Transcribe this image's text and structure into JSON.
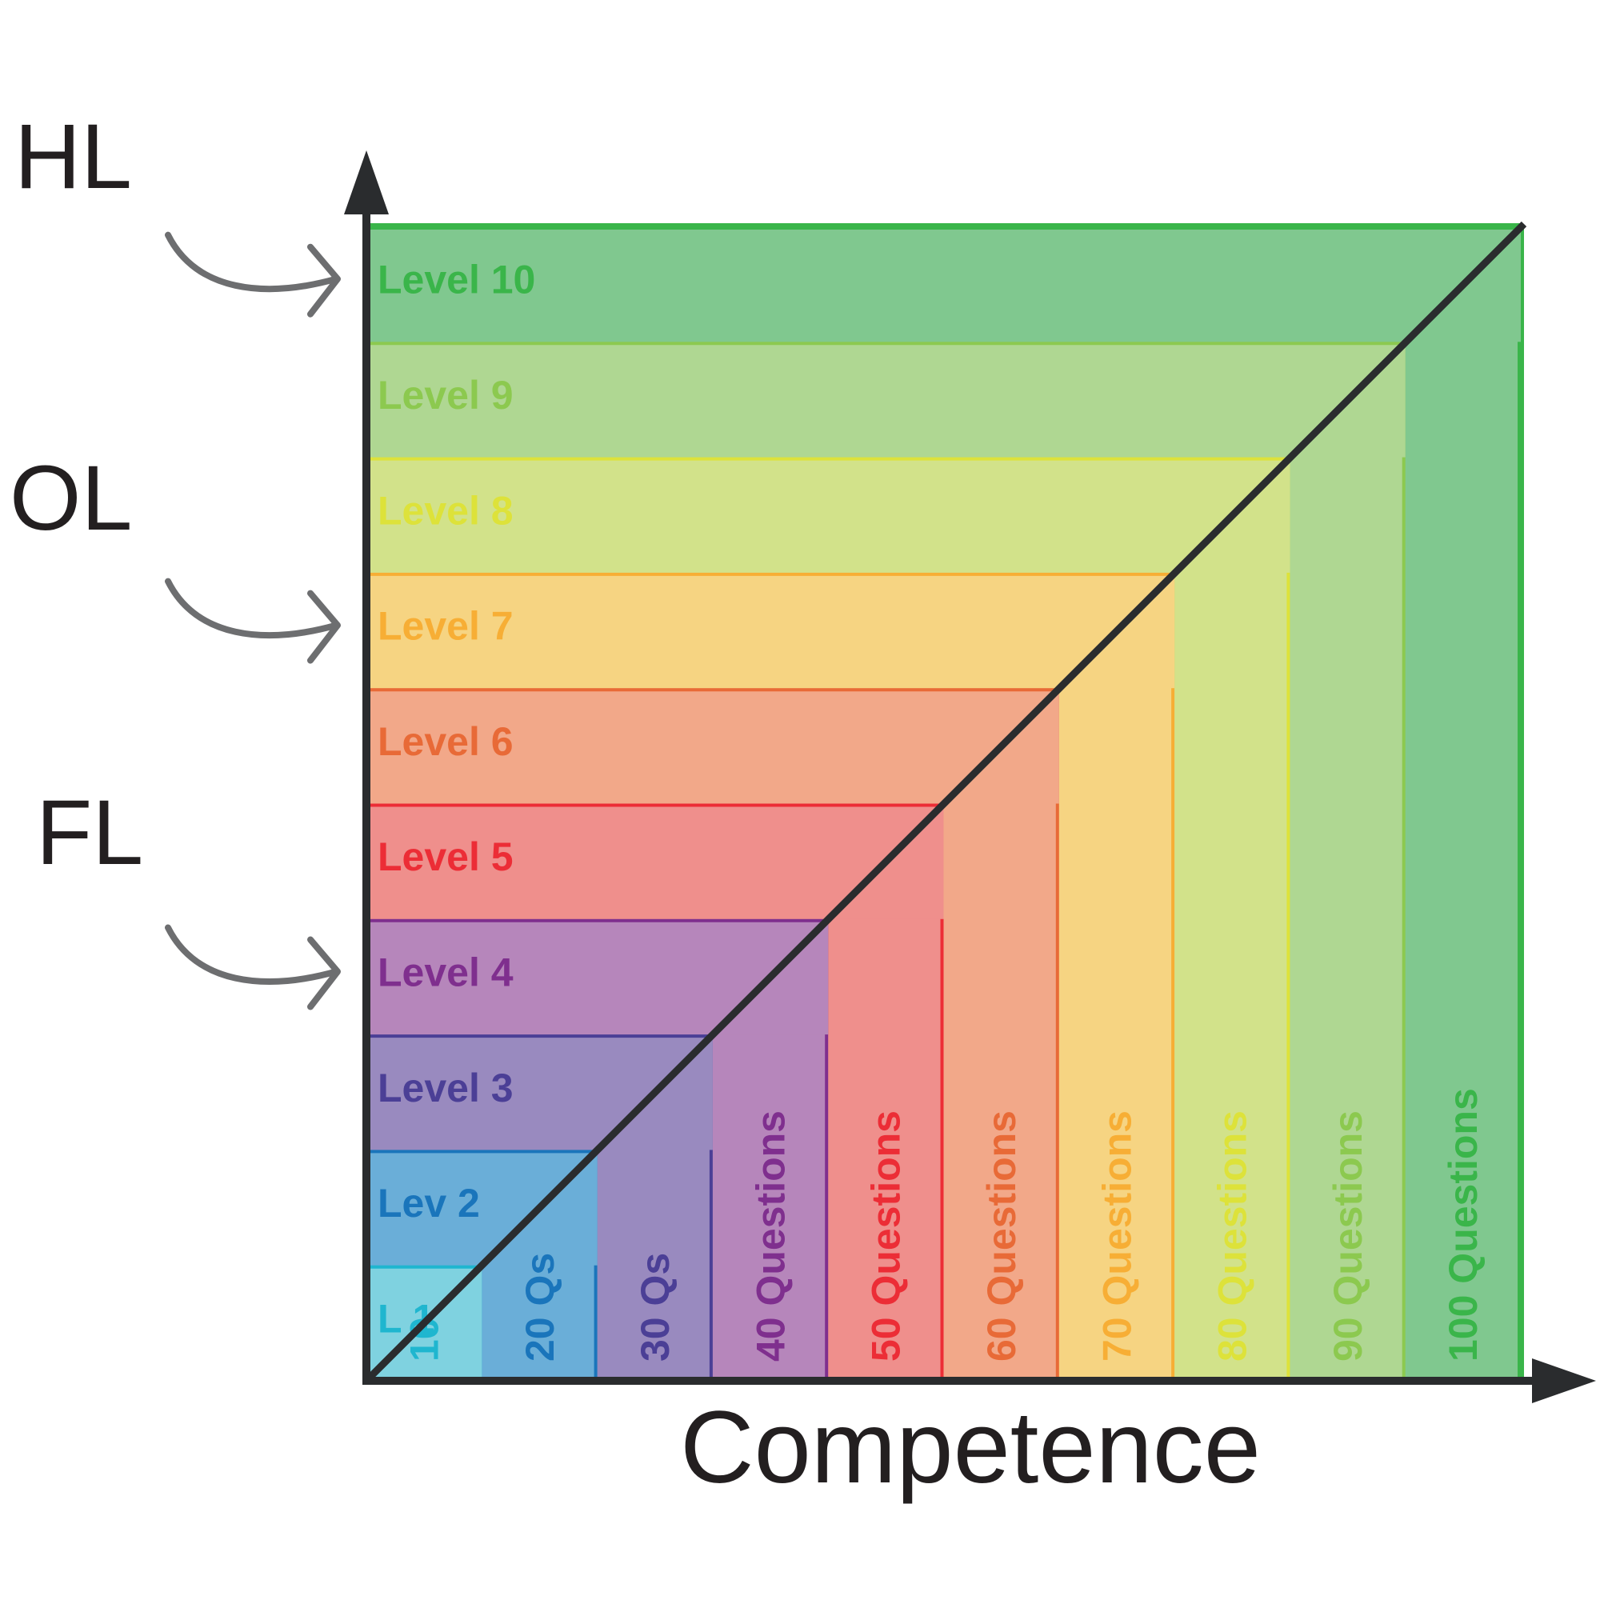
{
  "side_labels": [
    "HL",
    "OL",
    "FL"
  ],
  "x_axis_label": "Competence",
  "levels": [
    {
      "label": "L 1",
      "questions": "10",
      "fill": "#7fd2e0",
      "stroke": "#1fb6cf"
    },
    {
      "label": "Lev 2",
      "questions": "20 Qs",
      "fill": "#6aaed8",
      "stroke": "#1a75bb"
    },
    {
      "label": "Level 3",
      "questions": "30 Qs",
      "fill": "#998abf",
      "stroke": "#4b3f96"
    },
    {
      "label": "Level 4",
      "questions": "40 Questions",
      "fill": "#b686bb",
      "stroke": "#7f2f8e"
    },
    {
      "label": "Level 5",
      "questions": "50 Questions",
      "fill": "#ef8f8c",
      "stroke": "#ec2d36"
    },
    {
      "label": "Level 6",
      "questions": "60 Questions",
      "fill": "#f2a889",
      "stroke": "#e86a37"
    },
    {
      "label": "Level 7",
      "questions": "70 Questions",
      "fill": "#f6d482",
      "stroke": "#f7ae35"
    },
    {
      "label": "Level 8",
      "questions": "80 Questions",
      "fill": "#d2e28a",
      "stroke": "#dde23a"
    },
    {
      "label": "Level 9",
      "questions": "90 Questions",
      "fill": "#afd792",
      "stroke": "#8cc94f"
    },
    {
      "label": "Level 10",
      "questions": "100 Questions",
      "fill": "#80c88f",
      "stroke": "#3ab54a"
    }
  ],
  "side_label_targets": [
    10,
    7,
    4
  ],
  "colors": {
    "axis": "#2a2c2e",
    "arrow": "#6d6e70"
  }
}
